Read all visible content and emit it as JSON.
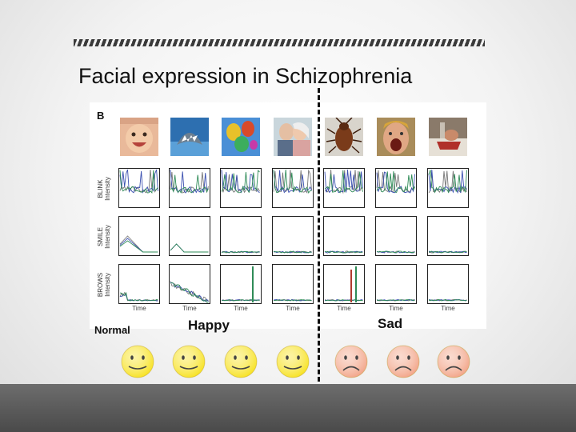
{
  "slide": {
    "title": "Facial expression in Schizophrenia"
  },
  "figure": {
    "panel_letter": "B",
    "row_labels": [
      {
        "line1": "BLINK",
        "line2": "Intensity"
      },
      {
        "line1": "SMILE",
        "line2": "Intensity"
      },
      {
        "line1": "BROWS",
        "line2": "Intensity"
      }
    ],
    "time_label": "Time",
    "stimulus_images": [
      "baby",
      "shark",
      "hot-air-balloons",
      "elderly-couple-kiss",
      "cockroach",
      "screaming-man",
      "injured-person"
    ]
  },
  "labels": {
    "normal": "Normal",
    "happy": "Happy",
    "sad": "Sad"
  },
  "faces": [
    {
      "mood": "happy-face",
      "color": "#f7e11b"
    },
    {
      "mood": "happy-face",
      "color": "#f7e11b"
    },
    {
      "mood": "happy-face",
      "color": "#f7e11b"
    },
    {
      "mood": "happy-face",
      "color": "#f7e11b"
    },
    {
      "mood": "sad-face",
      "color": "#f2a285"
    },
    {
      "mood": "sad-face",
      "color": "#f2a285"
    },
    {
      "mood": "sad-face",
      "color": "#f2a285"
    }
  ],
  "colors": {
    "accent_stripe": "#3a3a3a",
    "bottom_band": "#555555",
    "trace_green": "#2e8b57",
    "trace_blue": "#3a4fb0",
    "trace_gray": "#777777"
  }
}
